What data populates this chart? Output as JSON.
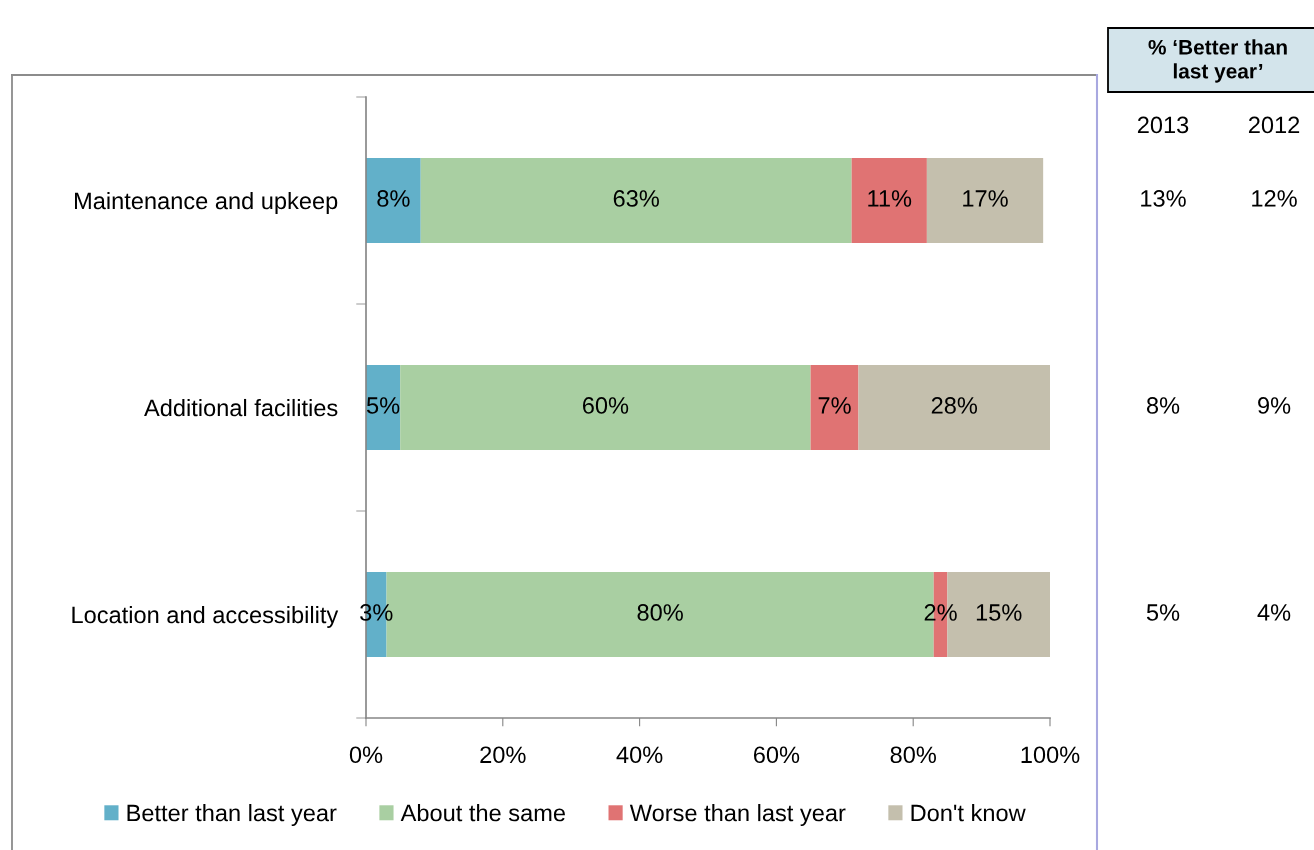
{
  "chart_data": [
    {
      "type": "bar",
      "orientation": "horizontal",
      "stacked": true,
      "categories": [
        "Maintenance and upkeep",
        "Additional facilities",
        "Location and accessibility"
      ],
      "series": [
        {
          "name": "Better than last year",
          "color": "#62b0c9",
          "values": [
            8,
            5,
            3
          ],
          "value_labels": [
            "8%",
            "5%",
            "3%"
          ]
        },
        {
          "name": "About the same",
          "color": "#a9cfa2",
          "values": [
            63,
            60,
            80
          ],
          "value_labels": [
            "63%",
            "60%",
            "80%"
          ]
        },
        {
          "name": "Worse than last year",
          "color": "#e07373",
          "values": [
            11,
            7,
            2
          ],
          "value_labels": [
            "11%",
            "7%",
            "2%"
          ]
        },
        {
          "name": "Don't know",
          "color": "#c4bfad",
          "values": [
            17,
            28,
            15
          ],
          "value_labels": [
            "17%",
            "28%",
            "15%"
          ]
        }
      ],
      "xlim": [
        0,
        100
      ],
      "xticks": [
        {
          "value": 0,
          "label": "0%"
        },
        {
          "value": 20,
          "label": "20%"
        },
        {
          "value": 40,
          "label": "40%"
        },
        {
          "value": 60,
          "label": "60%"
        },
        {
          "value": 80,
          "label": "80%"
        },
        {
          "value": 100,
          "label": "100%"
        }
      ],
      "legend": "bottom"
    },
    {
      "type": "other",
      "title": "% ‘Better than\nlast year’",
      "annotations": [
        "2013",
        "2012",
        "13%",
        "12%",
        "8%",
        "9%",
        "5%",
        "4%"
      ]
    }
  ]
}
